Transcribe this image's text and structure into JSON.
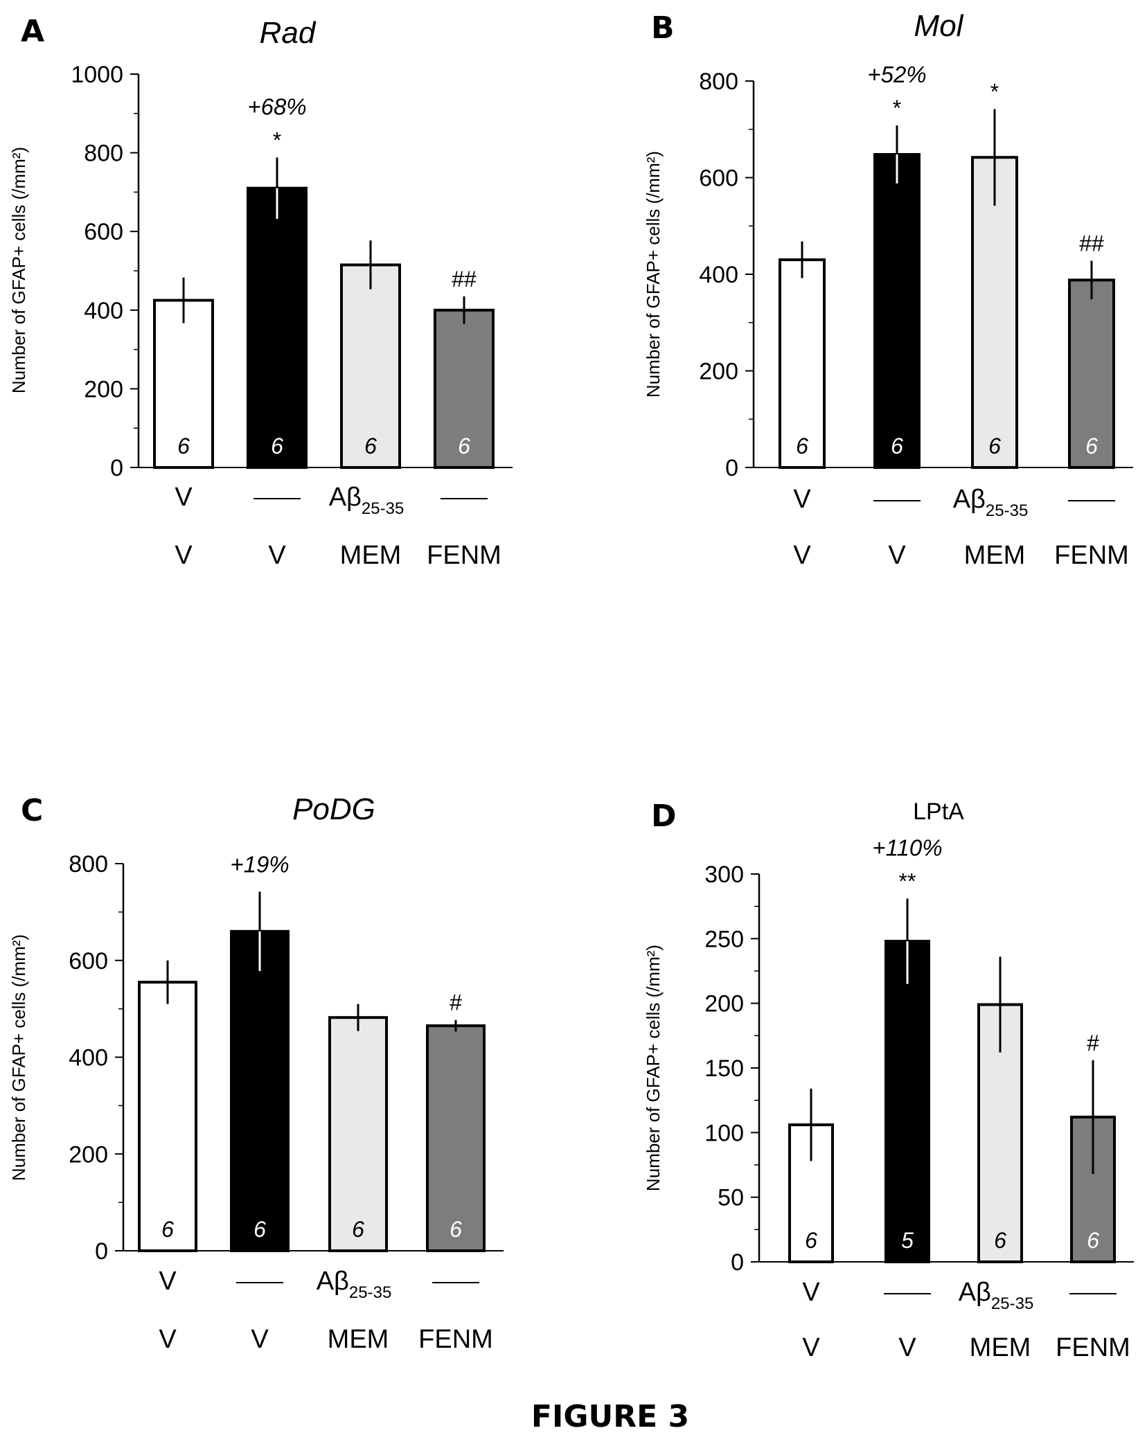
{
  "figure": {
    "caption": "FIGURE 3"
  },
  "colors": {
    "bar_fills": [
      "#ffffff",
      "#000000",
      "#e9e9e9",
      "#7d7d7d"
    ],
    "n_label_colors": [
      "#000000",
      "#ffffff",
      "#000000",
      "#ffffff"
    ]
  },
  "chart_data": [
    {
      "panel": "A",
      "type": "bar",
      "title": "Rad",
      "title_italic": true,
      "ylabel": "Number of GFAP+ cells (/mm²)",
      "ylim": [
        0,
        1000
      ],
      "yticks": [
        "0",
        "200",
        "400",
        "600",
        "800",
        "1000"
      ],
      "categories": [
        "V",
        "V",
        "MEM",
        "FENM"
      ],
      "values": [
        425,
        710,
        515,
        400
      ],
      "errors": [
        58,
        78,
        62,
        35
      ],
      "n": [
        "6",
        "6",
        "6",
        "6"
      ],
      "significance": [
        "",
        "*",
        "",
        "##"
      ],
      "percent_labels": [
        "",
        "+68%",
        "",
        ""
      ],
      "row1": [
        "V",
        "Aβ",
        "25-35"
      ]
    },
    {
      "panel": "B",
      "type": "bar",
      "title": "Mol",
      "title_italic": true,
      "ylabel": "Number of GFAP+ cells (/mm²)",
      "ylim": [
        0,
        800
      ],
      "yticks": [
        "0",
        "200",
        "400",
        "600",
        "800"
      ],
      "categories": [
        "V",
        "V",
        "MEM",
        "FENM"
      ],
      "values": [
        430,
        648,
        642,
        388
      ],
      "errors": [
        38,
        60,
        100,
        40
      ],
      "n": [
        "6",
        "6",
        "6",
        "6"
      ],
      "significance": [
        "",
        "*",
        "*",
        "##"
      ],
      "percent_labels": [
        "",
        "+52%",
        "",
        ""
      ],
      "row1": [
        "V",
        "Aβ",
        "25-35"
      ]
    },
    {
      "panel": "C",
      "type": "bar",
      "title": "PoDG",
      "title_italic": true,
      "ylabel": "Number of GFAP+ cells (/mm²)",
      "ylim": [
        0,
        800
      ],
      "yticks": [
        "0",
        "200",
        "400",
        "600",
        "800"
      ],
      "categories": [
        "V",
        "V",
        "MEM",
        "FENM"
      ],
      "values": [
        555,
        660,
        482,
        465
      ],
      "errors": [
        45,
        82,
        28,
        12
      ],
      "n": [
        "6",
        "6",
        "6",
        "6"
      ],
      "significance": [
        "",
        "",
        "",
        "#"
      ],
      "percent_labels": [
        "",
        "+19%",
        "",
        ""
      ],
      "row1": [
        "V",
        "Aβ",
        "25-35"
      ]
    },
    {
      "panel": "D",
      "type": "bar",
      "title": "LPtA",
      "title_italic": false,
      "ylabel": "Number of GFAP+ cells (/mm²)",
      "ylim": [
        0,
        300
      ],
      "yticks": [
        "0",
        "50",
        "100",
        "150",
        "200",
        "250",
        "300"
      ],
      "categories": [
        "V",
        "V",
        "MEM",
        "FENM"
      ],
      "values": [
        106,
        248,
        199,
        112
      ],
      "errors": [
        28,
        33,
        37,
        44
      ],
      "n": [
        "6",
        "5",
        "6",
        "6"
      ],
      "significance": [
        "",
        "**",
        "",
        "#"
      ],
      "percent_labels": [
        "",
        "+110%",
        "",
        ""
      ],
      "row1": [
        "V",
        "Aβ",
        "25-35"
      ]
    }
  ]
}
